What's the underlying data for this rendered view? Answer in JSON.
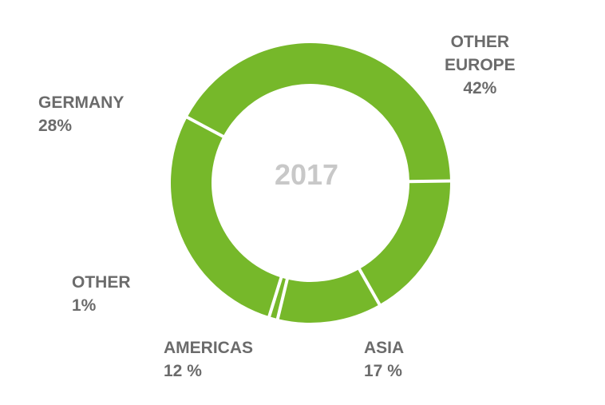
{
  "chart_data": {
    "type": "pie",
    "center_label": "2017",
    "slices": [
      {
        "label_lines": [
          "OTHER",
          "EUROPE"
        ],
        "value_text": "42%",
        "value": 42
      },
      {
        "label_lines": [
          "ASIA"
        ],
        "value_text": "17 %",
        "value": 17
      },
      {
        "label_lines": [
          "AMERICAS"
        ],
        "value_text": "12 %",
        "value": 12
      },
      {
        "label_lines": [
          "OTHER"
        ],
        "value_text": "1%",
        "value": 1
      },
      {
        "label_lines": [
          "GERMANY"
        ],
        "value_text": "28%",
        "value": 28
      }
    ],
    "color": "#76b82a",
    "separator_color": "#ffffff"
  }
}
